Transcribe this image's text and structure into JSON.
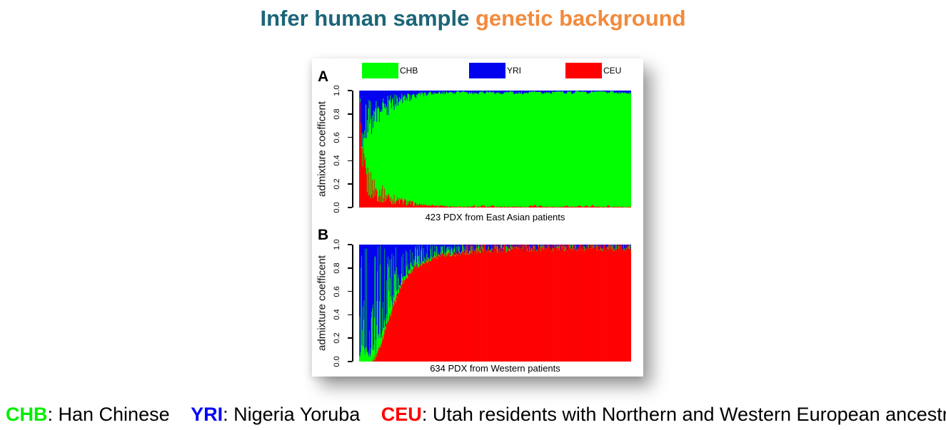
{
  "title": {
    "part1": "Infer human sample ",
    "part2": "genetic background",
    "color1": "#1b6578",
    "color2": "#f28a3c"
  },
  "figure": {
    "legend": [
      {
        "label": "CHB",
        "color": "#00ff00"
      },
      {
        "label": "YRI",
        "color": "#0202ee"
      },
      {
        "label": "CEU",
        "color": "#ff0000"
      }
    ],
    "panels": [
      {
        "label": "A",
        "ylabel": "admixture coefficent",
        "yticks": [
          "0.0",
          "0.2",
          "0.4",
          "0.6",
          "0.8",
          "1.0"
        ],
        "caption": "423 PDX from East Asian patients"
      },
      {
        "label": "B",
        "ylabel": "admixture coefficent",
        "yticks": [
          "0.0",
          "0.2",
          "0.4",
          "0.6",
          "0.8",
          "1.0"
        ],
        "caption": "634 PDX from Western patients"
      }
    ]
  },
  "footer": {
    "segments": [
      {
        "key": "CHB",
        "color": "#00ee00",
        "desc": ": Han Chinese"
      },
      {
        "key": "YRI",
        "color": "#0202ff",
        "desc": ": Nigeria Yoruba"
      },
      {
        "key": "CEU",
        "color": "#ff0000",
        "desc": ": Utah residents with Northern and Western European ancestry"
      }
    ]
  },
  "chart_data": [
    {
      "type": "bar",
      "subtype": "stacked-admixture",
      "model": "east_asian",
      "panel": "A",
      "n_samples": 423,
      "xlabel": "423 PDX from East Asian patients",
      "ylabel": "admixture coefficent",
      "ylim": [
        0.0,
        1.0
      ],
      "yticks": [
        0.0,
        0.2,
        0.4,
        0.6,
        0.8,
        1.0
      ],
      "stack_order_bottom_to_top": [
        "CEU",
        "CHB",
        "YRI"
      ],
      "colors": {
        "CHB": "#00ff00",
        "YRI": "#0202ee",
        "CEU": "#ff0000"
      },
      "profile": {
        "positions": [
          0,
          0.003,
          0.006,
          0.012,
          0.03,
          0.07,
          0.13,
          0.22,
          0.35,
          1.0
        ],
        "CEU": [
          1.0,
          1.0,
          0.45,
          0.3,
          0.2,
          0.12,
          0.06,
          0.02,
          0.006,
          0.004
        ],
        "YRI": [
          0.0,
          0.0,
          0.35,
          0.3,
          0.24,
          0.16,
          0.09,
          0.03,
          0.01,
          0.007
        ]
      },
      "description": "Bars sorted by CHB fraction: leftmost 1-2 samples fully CEU (red), decaying YRI (blue) spikes at top and CEU (red) spikes at bottom over first ~30% of samples, then nearly pure CHB (green) with sparse thin YRI specks at top edge and CEU specks at bottom edge."
    },
    {
      "type": "bar",
      "subtype": "stacked-admixture",
      "model": "western",
      "panel": "B",
      "n_samples": 634,
      "xlabel": "634 PDX from Western patients",
      "ylabel": "admixture coefficent",
      "ylim": [
        0.0,
        1.0
      ],
      "yticks": [
        0.0,
        0.2,
        0.4,
        0.6,
        0.8,
        1.0
      ],
      "stack_order_bottom_to_top": [
        "CEU",
        "CHB",
        "YRI"
      ],
      "colors": {
        "CHB": "#00ff00",
        "YRI": "#0202ee",
        "CEU": "#ff0000"
      },
      "profile": {
        "positions": [
          0,
          0.045,
          0.06,
          0.08,
          0.1,
          0.13,
          0.16,
          0.2,
          0.28,
          0.45,
          0.75,
          1.0
        ],
        "CEU": [
          0.0,
          0.0,
          0.04,
          0.15,
          0.3,
          0.5,
          0.68,
          0.8,
          0.9,
          0.95,
          0.965,
          0.97
        ]
      },
      "description": "Bars sorted by CEU (red) fraction: leftmost ~4.5% of samples have no CEU and are striped YRI (blue) / CHB (green); CEU rises steeply to ~0.8 by ~20% of samples, then flattens near 0.97 with a thin speckled YRI/CHB band at the top edge."
    }
  ]
}
